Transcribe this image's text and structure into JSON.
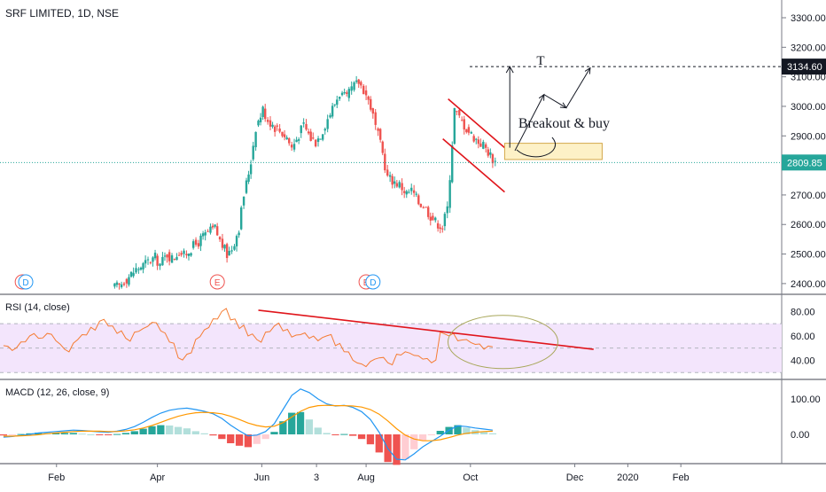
{
  "header": {
    "symbol": "SRF LIMITED, 1D, NSE"
  },
  "colors": {
    "up": "#26a69a",
    "down": "#ef5350",
    "trendline": "#e0151b",
    "rsi_line": "#f57c33",
    "rsi_band": "#f3e5fc",
    "macd_line": "#2196f3",
    "signal_line": "#ff9800",
    "current_price": "#26a69a",
    "highlight_box": "#fdf1c7"
  },
  "chart_data": [
    {
      "type": "candlestick",
      "title": "SRF LIMITED, 1D, NSE",
      "x_tick_labels": [
        "Feb",
        "Apr",
        "Jun",
        "3",
        "Aug",
        "Oct",
        "Dec",
        "2020",
        "Feb"
      ],
      "y_tick_labels": [
        "3300.00",
        "3200.00",
        "3100.00",
        "3000.00",
        "2900.00",
        "2700.00",
        "2600.00",
        "2500.00",
        "2400.00"
      ],
      "ylim": [
        2370,
        3340
      ],
      "price_line": {
        "value": 2809.85,
        "label": "2809.85"
      },
      "target_line": {
        "value": 3134.6,
        "label": "3134.60"
      },
      "annotations": [
        "T",
        "Breakout & buy"
      ],
      "event_markers": [
        {
          "date": "Jan 12",
          "label": "E"
        },
        {
          "date": "Jan 14",
          "label": "D"
        },
        {
          "date": "May 6",
          "label": "E"
        },
        {
          "date": "Aug 1",
          "label": "E"
        },
        {
          "date": "Aug 5",
          "label": "D"
        }
      ],
      "series_close": [
        {
          "date": "Mar 7",
          "close": 2392
        },
        {
          "date": "Mar 11",
          "close": 2410
        },
        {
          "date": "Mar 14",
          "close": 2432
        },
        {
          "date": "Mar 18",
          "close": 2448
        },
        {
          "date": "Mar 21",
          "close": 2462
        },
        {
          "date": "Mar 25",
          "close": 2475
        },
        {
          "date": "Mar 28",
          "close": 2488
        },
        {
          "date": "Apr 1",
          "close": 2466
        },
        {
          "date": "Apr 4",
          "close": 2500
        },
        {
          "date": "Apr 8",
          "close": 2485
        },
        {
          "date": "Apr 11",
          "close": 2510
        },
        {
          "date": "Apr 15",
          "close": 2495
        },
        {
          "date": "Apr 18",
          "close": 2520
        },
        {
          "date": "Apr 22",
          "close": 2532
        },
        {
          "date": "Apr 25",
          "close": 2558
        },
        {
          "date": "Apr 29",
          "close": 2572
        },
        {
          "date": "May 2",
          "close": 2588
        },
        {
          "date": "May 6",
          "close": 2545
        },
        {
          "date": "May 9",
          "close": 2498
        },
        {
          "date": "May 13",
          "close": 2520
        },
        {
          "date": "May 16",
          "close": 2590
        },
        {
          "date": "May 20",
          "close": 2700
        },
        {
          "date": "May 23",
          "close": 2815
        },
        {
          "date": "May 27",
          "close": 2930
        },
        {
          "date": "May 30",
          "close": 2990
        },
        {
          "date": "Jun 3",
          "close": 2955
        },
        {
          "date": "Jun 6",
          "close": 2930
        },
        {
          "date": "Jun 10",
          "close": 2918
        },
        {
          "date": "Jun 13",
          "close": 2895
        },
        {
          "date": "Jun 17",
          "close": 2860
        },
        {
          "date": "Jun 20",
          "close": 2905
        },
        {
          "date": "Jun 24",
          "close": 2935
        },
        {
          "date": "Jun 27",
          "close": 2892
        },
        {
          "date": "Jul 1",
          "close": 2880
        },
        {
          "date": "Jul 4",
          "close": 2920
        },
        {
          "date": "Jul 8",
          "close": 2960
        },
        {
          "date": "Jul 11",
          "close": 3010
        },
        {
          "date": "Jul 15",
          "close": 3045
        },
        {
          "date": "Jul 18",
          "close": 3025
        },
        {
          "date": "Jul 22",
          "close": 3060
        },
        {
          "date": "Jul 25",
          "close": 3082
        },
        {
          "date": "Jul 29",
          "close": 3058
        },
        {
          "date": "Aug 1",
          "close": 3000
        },
        {
          "date": "Aug 5",
          "close": 2930
        },
        {
          "date": "Aug 8",
          "close": 2840
        },
        {
          "date": "Aug 12",
          "close": 2760
        },
        {
          "date": "Aug 15",
          "close": 2745
        },
        {
          "date": "Aug 19",
          "close": 2735
        },
        {
          "date": "Aug 22",
          "close": 2705
        },
        {
          "date": "Aug 26",
          "close": 2715
        },
        {
          "date": "Aug 29",
          "close": 2675
        },
        {
          "date": "Sep 2",
          "close": 2665
        },
        {
          "date": "Sep 5",
          "close": 2630
        },
        {
          "date": "Sep 9",
          "close": 2610
        },
        {
          "date": "Sep 12",
          "close": 2592
        },
        {
          "date": "Sep 16",
          "close": 2655
        },
        {
          "date": "Sep 19",
          "close": 2990
        },
        {
          "date": "Sep 23",
          "close": 2960
        },
        {
          "date": "Sep 26",
          "close": 2925
        },
        {
          "date": "Sep 30",
          "close": 2905
        },
        {
          "date": "Oct 3",
          "close": 2880
        },
        {
          "date": "Oct 7",
          "close": 2870
        },
        {
          "date": "Oct 10",
          "close": 2835
        },
        {
          "date": "Oct 14",
          "close": 2812
        }
      ]
    },
    {
      "type": "line",
      "title": "RSI (14, close)",
      "y_tick_labels": [
        "80.00",
        "60.00",
        "40.00"
      ],
      "ylim": [
        28,
        86
      ],
      "band": [
        30,
        70
      ],
      "series": [
        {
          "name": "RSI (14, close)",
          "values": [
            52,
            48,
            55,
            60,
            58,
            62,
            56,
            49,
            54,
            61,
            67,
            72,
            68,
            62,
            58,
            63,
            66,
            71,
            64,
            55,
            42,
            45,
            57,
            65,
            74,
            80,
            73,
            66,
            60,
            57,
            63,
            68,
            64,
            59,
            61,
            58,
            56,
            60,
            52,
            47,
            40,
            37,
            39,
            42,
            38,
            45,
            47,
            44,
            41,
            38,
            63,
            60,
            56,
            57,
            53,
            49,
            51
          ]
        }
      ]
    },
    {
      "type": "line",
      "title": "MACD (12, 26, close, 9)",
      "y_tick_labels": [
        "100.00",
        "0.00"
      ],
      "ylim": [
        -90,
        160
      ],
      "series": [
        {
          "name": "MACD",
          "values": [
            -8,
            -6,
            -3,
            0,
            4,
            6,
            8,
            10,
            12,
            11,
            9,
            7,
            6,
            9,
            14,
            22,
            34,
            48,
            60,
            68,
            72,
            74,
            70,
            65,
            58,
            45,
            26,
            10,
            -4,
            -2,
            8,
            30,
            70,
            110,
            128,
            118,
            100,
            86,
            80,
            82,
            76,
            64,
            42,
            6,
            -40,
            -70,
            -72,
            -55,
            -35,
            -20,
            -5,
            12,
            24,
            22,
            18,
            15,
            12
          ]
        },
        {
          "name": "Signal",
          "values": [
            -5,
            -5,
            -4,
            -3,
            -1,
            2,
            4,
            6,
            8,
            9,
            9,
            9,
            8,
            8,
            10,
            13,
            18,
            25,
            34,
            43,
            51,
            57,
            61,
            62,
            61,
            58,
            51,
            42,
            32,
            25,
            21,
            23,
            33,
            49,
            65,
            76,
            81,
            82,
            81,
            81,
            80,
            77,
            70,
            57,
            38,
            16,
            -2,
            -13,
            -18,
            -18,
            -15,
            -9,
            -2,
            3,
            6,
            8,
            9
          ]
        }
      ],
      "histogram": [
        -3,
        -1,
        1,
        3,
        5,
        4,
        4,
        4,
        4,
        2,
        0,
        -2,
        -2,
        1,
        4,
        9,
        16,
        23,
        26,
        25,
        21,
        17,
        9,
        3,
        -3,
        -13,
        -25,
        -32,
        -36,
        -27,
        -13,
        7,
        37,
        61,
        63,
        42,
        19,
        4,
        -1,
        1,
        -4,
        -13,
        -28,
        -51,
        -78,
        -86,
        -70,
        -42,
        -17,
        -2,
        10,
        21,
        26,
        19,
        12,
        7,
        3
      ]
    }
  ]
}
